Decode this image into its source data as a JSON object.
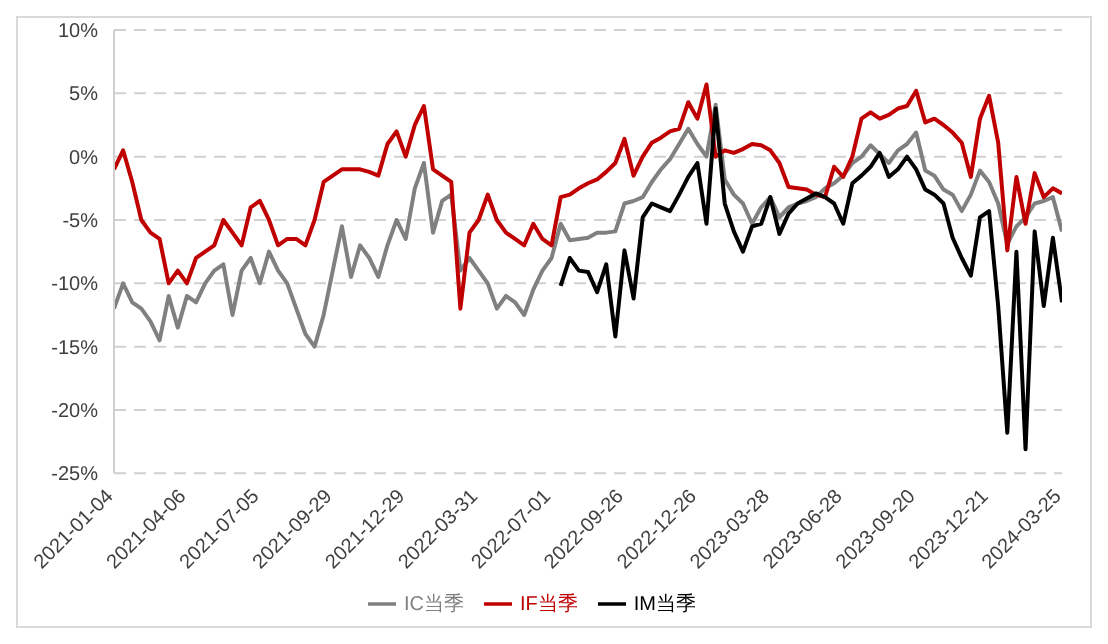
{
  "chart_data": {
    "type": "line",
    "categories": [
      "2021-01-04",
      null,
      null,
      null,
      null,
      null,
      null,
      null,
      "2021-04-06",
      null,
      null,
      null,
      null,
      null,
      null,
      null,
      "2021-07-05",
      null,
      null,
      null,
      null,
      null,
      null,
      null,
      "2021-09-29",
      null,
      null,
      null,
      null,
      null,
      null,
      null,
      "2021-12-29",
      null,
      null,
      null,
      null,
      null,
      null,
      null,
      "2022-03-31",
      null,
      null,
      null,
      null,
      null,
      null,
      null,
      "2022-07-01",
      null,
      null,
      null,
      null,
      null,
      null,
      null,
      "2022-09-26",
      null,
      null,
      null,
      null,
      null,
      null,
      null,
      "2022-12-26",
      null,
      null,
      null,
      null,
      null,
      null,
      null,
      "2023-03-28",
      null,
      null,
      null,
      null,
      null,
      null,
      null,
      "2023-06-28",
      null,
      null,
      null,
      null,
      null,
      null,
      null,
      "2023-09-20",
      null,
      null,
      null,
      null,
      null,
      null,
      null,
      "2023-12-21",
      null,
      null,
      null,
      null,
      null,
      null,
      null,
      "2024-03-25"
    ],
    "series": [
      {
        "name": "IC当季",
        "color": "#808080",
        "values": [
          -12,
          -10,
          -11.5,
          -12,
          -13,
          -14.5,
          -11,
          -13.5,
          -11,
          -11.5,
          -10,
          -9,
          -8.5,
          -12.5,
          -9,
          -8,
          -10,
          -7.5,
          -9,
          -10,
          -12,
          -14,
          -15,
          -12.5,
          -9,
          -5.5,
          -9.5,
          -7,
          -8,
          -9.5,
          -7,
          -5,
          -6.5,
          -2.5,
          -0.5,
          -6,
          -3.5,
          -3,
          -9,
          -8,
          -9,
          -10,
          -12,
          -11,
          -11.5,
          -12.5,
          -10.5,
          -9,
          -8,
          -5.3,
          -6.6,
          -6.5,
          -6.4,
          -6,
          -6,
          -5.9,
          -3.7,
          -3.5,
          -3.2,
          -2,
          -1,
          -0.2,
          1,
          2.2,
          1,
          0,
          4.1,
          -1.8,
          -3,
          -3.7,
          -5.3,
          -4,
          -3.2,
          -4.8,
          -4,
          -3.7,
          -3.5,
          -3.2,
          -2.5,
          -2.1,
          -1.5,
          -0.5,
          0,
          0.9,
          0.2,
          -0.5,
          0.5,
          1,
          1.9,
          -1.1,
          -1.5,
          -2.6,
          -3,
          -4.3,
          -3,
          -1.1,
          -2,
          -3.7,
          -6.9,
          -5.5,
          -4.8,
          -3.7,
          -3.5,
          -3.2,
          -5.9
        ]
      },
      {
        "name": "IF当季",
        "color": "#c00000",
        "values": [
          -1,
          0.5,
          -2,
          -5,
          -6,
          -6.5,
          -10,
          -9,
          -10,
          -8,
          -7.5,
          -7,
          -5,
          -6,
          -7,
          -4,
          -3.5,
          -5,
          -7,
          -6.5,
          -6.5,
          -7,
          -5,
          -2,
          -1.5,
          -1,
          -1,
          -1,
          -1.2,
          -1.5,
          1,
          2,
          0,
          2.5,
          4,
          -1,
          -1.5,
          -2,
          -12,
          -6,
          -5,
          -3,
          -5,
          -6,
          -6.5,
          -7,
          -5.3,
          -6.5,
          -7,
          -3.2,
          -3,
          -2.5,
          -2.1,
          -1.8,
          -1.2,
          -0.5,
          1.4,
          -1.5,
          0,
          1.1,
          1.5,
          2,
          2.2,
          4.3,
          3,
          5.7,
          0,
          0.5,
          0.3,
          0.6,
          1,
          0.9,
          0.5,
          -0.5,
          -2.4,
          -2.5,
          -2.6,
          -3,
          -3.2,
          -0.8,
          -1.6,
          0,
          3,
          3.5,
          3,
          3.3,
          3.8,
          4,
          5.2,
          2.7,
          3,
          2.5,
          1.9,
          1.1,
          -1.6,
          3,
          4.8,
          1.1,
          -7.4,
          -1.6,
          -5.3,
          -1.3,
          -3.2,
          -2.5,
          -2.9
        ]
      },
      {
        "name": "IM当季",
        "color": "#000000",
        "values": [
          null,
          null,
          null,
          null,
          null,
          null,
          null,
          null,
          null,
          null,
          null,
          null,
          null,
          null,
          null,
          null,
          null,
          null,
          null,
          null,
          null,
          null,
          null,
          null,
          null,
          null,
          null,
          null,
          null,
          null,
          null,
          null,
          null,
          null,
          null,
          null,
          null,
          null,
          null,
          null,
          null,
          null,
          null,
          null,
          null,
          null,
          null,
          null,
          null,
          -10.2,
          -8,
          -9,
          -9.1,
          -10.7,
          -8.5,
          -14.2,
          -7.4,
          -11.2,
          -4.8,
          -3.7,
          -4,
          -4.3,
          -3,
          -1.6,
          -0.5,
          -5.3,
          3.8,
          -3.7,
          -5.9,
          -7.5,
          -5.5,
          -5.3,
          -3.2,
          -6.1,
          -4.5,
          -3.7,
          -3.3,
          -2.9,
          -3.2,
          -3.7,
          -5.3,
          -2.1,
          -1.5,
          -0.8,
          0.3,
          -1.6,
          -1,
          0,
          -1,
          -2.6,
          -3,
          -3.7,
          -6.4,
          -8,
          -9.4,
          -4.8,
          -4.3,
          -11.8,
          -21.8,
          -7.5,
          -23.1,
          -5.9,
          -11.8,
          -6.4,
          -11.5
        ]
      }
    ],
    "ylim": [
      -25,
      10
    ],
    "yticks": [
      {
        "value": -25,
        "label": "-25%"
      },
      {
        "value": -20,
        "label": "-20%"
      },
      {
        "value": -15,
        "label": "-15%"
      },
      {
        "value": -10,
        "label": "-10%"
      },
      {
        "value": -5,
        "label": "-5%"
      },
      {
        "value": 0,
        "label": "0%"
      },
      {
        "value": 5,
        "label": "5%"
      },
      {
        "value": 10,
        "label": "10%"
      }
    ],
    "grid": "y",
    "legend": "bottom",
    "marker": "none",
    "line_style": "solid"
  }
}
